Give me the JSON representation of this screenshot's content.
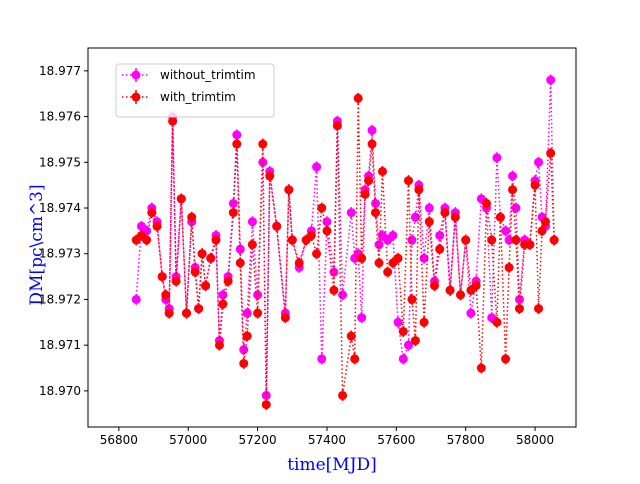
{
  "chart_data": {
    "type": "errorbar_line",
    "xlabel": "time[MJD]",
    "ylabel": "DM[pc\\cm^3]",
    "xlim": [
      56711,
      58118
    ],
    "ylim": [
      18.96921,
      18.9775
    ],
    "xticks": [
      56800,
      57000,
      57200,
      57400,
      57600,
      57800,
      58000
    ],
    "yticks": [
      {
        "value": 18.97,
        "label": "18.970"
      },
      18.971,
      18.972,
      18.973,
      18.974,
      18.975,
      18.976,
      18.977
    ],
    "legend": "upper left",
    "x": [
      56850,
      56865,
      56880,
      56895,
      56910,
      56925,
      56935,
      56945,
      56955,
      56965,
      56980,
      56995,
      57010,
      57020,
      57030,
      57040,
      57050,
      57065,
      57080,
      57090,
      57100,
      57115,
      57130,
      57140,
      57150,
      57160,
      57170,
      57185,
      57200,
      57215,
      57225,
      57235,
      57255,
      57280,
      57290,
      57300,
      57320,
      57340,
      57355,
      57370,
      57385,
      57400,
      57420,
      57430,
      57445,
      57470,
      57480,
      57490,
      57500,
      57510,
      57520,
      57530,
      57540,
      57550,
      57560,
      57575,
      57590,
      57605,
      57620,
      57635,
      57645,
      57655,
      57665,
      57680,
      57695,
      57710,
      57725,
      57740,
      57755,
      57770,
      57785,
      57800,
      57815,
      57830,
      57845,
      57860,
      57875,
      57890,
      57900,
      57915,
      57925,
      57935,
      57945,
      57955,
      57970,
      57985,
      58000,
      58010,
      58020,
      58030,
      58045,
      58055
    ],
    "series": [
      {
        "name": "without_trimtim",
        "color": "#ff00ff",
        "error": 0.00012,
        "values": [
          18.972,
          18.9736,
          18.9735,
          18.974,
          18.9737,
          18.9725,
          18.972,
          18.9718,
          18.976,
          18.9725,
          18.9742,
          18.9717,
          18.9737,
          18.9727,
          18.9718,
          18.973,
          18.9723,
          18.9729,
          18.9734,
          18.9711,
          18.9721,
          18.9725,
          18.9741,
          18.9756,
          18.9731,
          18.9709,
          18.9717,
          18.9737,
          18.9721,
          18.975,
          18.9699,
          18.9748,
          18.9736,
          18.9717,
          18.9744,
          18.9733,
          18.9727,
          18.9733,
          18.9735,
          18.9749,
          18.9707,
          18.9737,
          18.9726,
          18.9759,
          18.9721,
          18.9739,
          18.9729,
          18.973,
          18.9716,
          18.9744,
          18.9747,
          18.9757,
          18.9741,
          18.9732,
          18.9734,
          18.9733,
          18.9734,
          18.9715,
          18.9707,
          18.971,
          18.9733,
          18.9738,
          18.9745,
          18.9729,
          18.974,
          18.9724,
          18.9734,
          18.974,
          18.9722,
          18.9739,
          18.9721,
          18.9733,
          18.9717,
          18.9724,
          18.9742,
          18.974,
          18.9716,
          18.9751,
          18.9738,
          18.9735,
          18.9733,
          18.9747,
          18.974,
          18.972,
          18.9733,
          18.9732,
          18.9746,
          18.975,
          18.9738,
          18.9736,
          18.9768,
          18.9733
        ]
      },
      {
        "name": "with_trimtim",
        "color": "#ff0000",
        "error": 0.00012,
        "values": [
          18.9733,
          18.9734,
          18.9733,
          18.9739,
          18.9736,
          18.9725,
          18.9721,
          18.9717,
          18.9759,
          18.9724,
          18.9742,
          18.9717,
          18.9738,
          18.9726,
          18.9718,
          18.973,
          18.9723,
          18.9729,
          18.9733,
          18.971,
          18.9719,
          18.9724,
          18.9739,
          18.9754,
          18.9728,
          18.9706,
          18.9712,
          18.9732,
          18.9717,
          18.9754,
          18.9697,
          18.9747,
          18.9736,
          18.9716,
          18.9744,
          18.9733,
          18.9728,
          18.9733,
          18.9734,
          18.973,
          18.974,
          18.9735,
          18.9722,
          18.9758,
          18.9699,
          18.9712,
          18.9707,
          18.9764,
          18.9729,
          18.9743,
          18.9746,
          18.9754,
          18.9739,
          18.9728,
          18.9748,
          18.9726,
          18.9728,
          18.9729,
          18.9713,
          18.9746,
          18.972,
          18.9711,
          18.9744,
          18.9715,
          18.9737,
          18.9723,
          18.9731,
          18.9739,
          18.9722,
          18.9738,
          18.9721,
          18.9733,
          18.9722,
          18.9723,
          18.9705,
          18.9741,
          18.9733,
          18.9715,
          18.9738,
          18.9707,
          18.9727,
          18.9744,
          18.9733,
          18.9718,
          18.9732,
          18.9732,
          18.9745,
          18.9718,
          18.9735,
          18.9737,
          18.9752,
          18.9733
        ]
      }
    ]
  }
}
